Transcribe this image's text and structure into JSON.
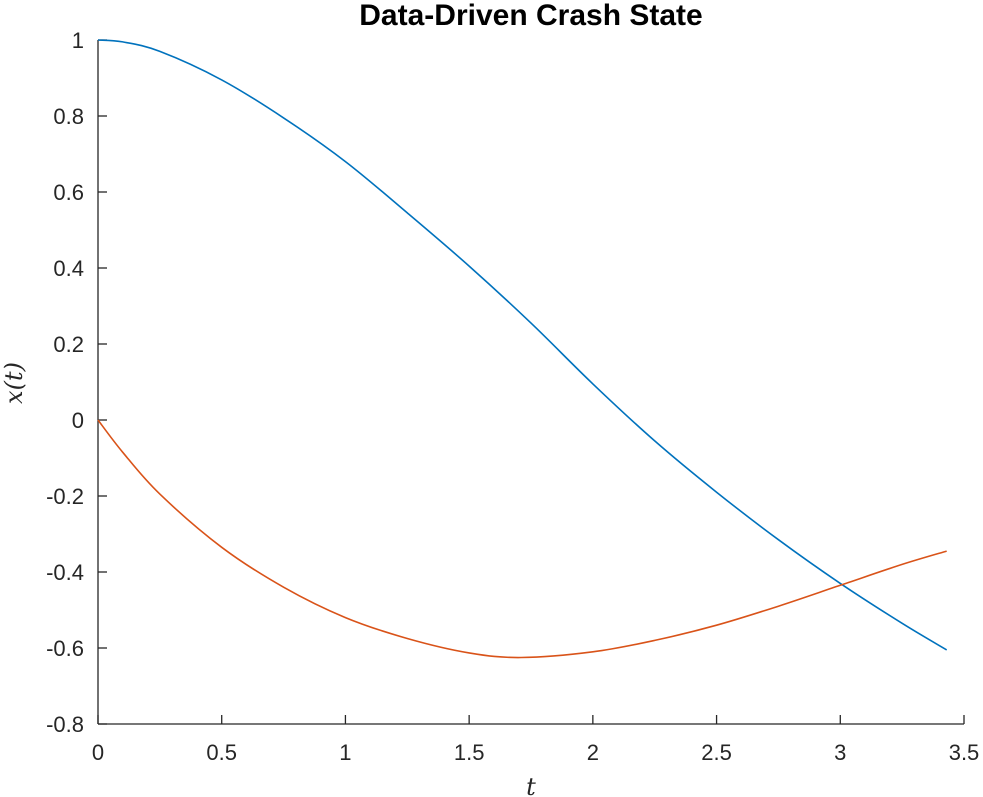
{
  "chart_data": {
    "type": "line",
    "title": "Data-Driven Crash State",
    "xlabel": "t",
    "ylabel": "x(t)",
    "xlim": [
      0,
      3.5
    ],
    "ylim": [
      -0.8,
      1
    ],
    "xticks": [
      0,
      0.5,
      1,
      1.5,
      2,
      2.5,
      3,
      3.5
    ],
    "xtick_labels": [
      "0",
      "0.5",
      "1",
      "1.5",
      "2",
      "2.5",
      "3",
      "3.5"
    ],
    "yticks": [
      -0.8,
      -0.6,
      -0.4,
      -0.2,
      0,
      0.2,
      0.4,
      0.6,
      0.8,
      1
    ],
    "ytick_labels": [
      "-0.8",
      "-0.6",
      "-0.4",
      "-0.2",
      "0",
      "0.2",
      "0.4",
      "0.6",
      "0.8",
      "1"
    ],
    "grid": false,
    "box": false,
    "series": [
      {
        "color": "#0072BD",
        "x": [
          0,
          0.1,
          0.25,
          0.5,
          0.75,
          1.0,
          1.25,
          1.5,
          1.75,
          2.0,
          2.25,
          2.5,
          2.75,
          3.0,
          3.25,
          3.43
        ],
        "y": [
          1.0,
          0.995,
          0.97,
          0.895,
          0.795,
          0.68,
          0.545,
          0.405,
          0.255,
          0.095,
          -0.055,
          -0.19,
          -0.315,
          -0.43,
          -0.535,
          -0.605
        ]
      },
      {
        "color": "#D95319",
        "x": [
          0,
          0.1,
          0.25,
          0.5,
          0.75,
          1.0,
          1.25,
          1.5,
          1.71,
          2.0,
          2.25,
          2.5,
          2.75,
          3.0,
          3.25,
          3.43
        ],
        "y": [
          0.0,
          -0.085,
          -0.195,
          -0.335,
          -0.44,
          -0.52,
          -0.575,
          -0.613,
          -0.625,
          -0.61,
          -0.58,
          -0.54,
          -0.49,
          -0.435,
          -0.38,
          -0.345
        ]
      }
    ]
  }
}
